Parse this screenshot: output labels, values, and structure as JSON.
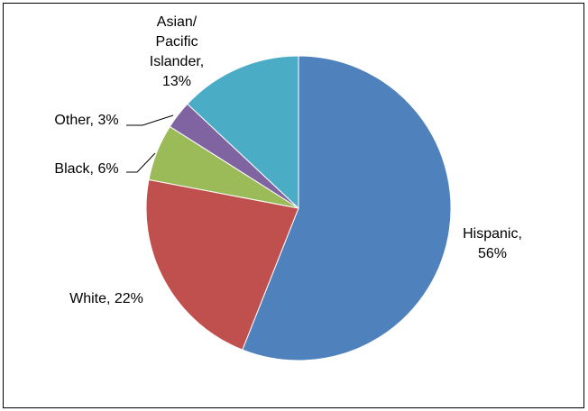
{
  "chart_data": {
    "type": "pie",
    "slices": [
      {
        "category": "Hispanic",
        "value": 56,
        "color": "#4F81BD",
        "label_lines": [
          "Hispanic,",
          "56%"
        ]
      },
      {
        "category": "White",
        "value": 22,
        "color": "#C0504D",
        "label_lines": [
          "White, 22%"
        ]
      },
      {
        "category": "Black",
        "value": 6,
        "color": "#9BBB59",
        "label_lines": [
          "Black, 6%"
        ]
      },
      {
        "category": "Other",
        "value": 3,
        "color": "#8064A2",
        "label_lines": [
          "Other, 3%"
        ]
      },
      {
        "category": "Asian/ Pacific Islander",
        "value": 13,
        "color": "#4BACC6",
        "label_lines": [
          "Asian/",
          "Pacific",
          "Islander,",
          "13%"
        ]
      }
    ],
    "unit": "%",
    "legend": "none",
    "start": "12 o'clock, clockwise"
  }
}
